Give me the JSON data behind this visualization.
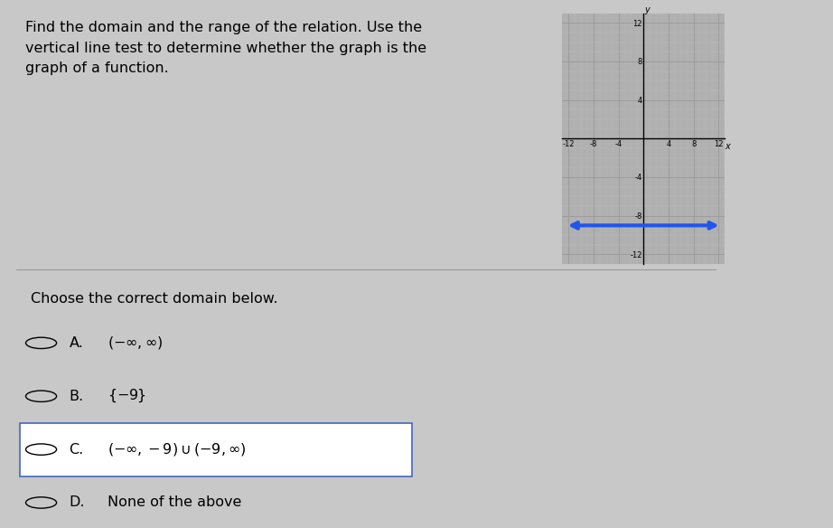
{
  "bg_color": "#c8c8c8",
  "title_text": "Find the domain and the range of the relation. Use the\nvertical line test to determine whether the graph is the\ngraph of a function.",
  "title_fontsize": 11.5,
  "graph": {
    "xlim": [
      -13,
      13
    ],
    "ylim": [
      -13,
      13
    ],
    "xticks": [
      -12,
      -8,
      -4,
      4,
      8,
      12
    ],
    "yticks": [
      -12,
      -8,
      -4,
      4,
      8,
      12
    ],
    "grid_major_color": "#999999",
    "grid_minor_color": "#bbbbbb",
    "axis_color": "#000000",
    "line_y": -9,
    "line_color": "#2255ee",
    "line_width": 3.0,
    "bg_color": "#b0b0b0"
  },
  "divider_color": "#999999",
  "question_text": "Choose the correct domain below.",
  "question_fontsize": 11.5,
  "options": [
    {
      "label": "A.",
      "text": "$(-\\infty,\\infty)$",
      "selected": false
    },
    {
      "label": "B.",
      "text": "$\\{-9\\}$",
      "selected": false
    },
    {
      "label": "C.",
      "text": "$(-\\infty,-9)\\cup(-9,\\infty)$",
      "selected": true
    },
    {
      "label": "D.",
      "text": "None of the above",
      "selected": false
    }
  ],
  "option_fontsize": 11.5,
  "selected_box_color": "#ffffff",
  "selected_box_edge": "#4466bb"
}
